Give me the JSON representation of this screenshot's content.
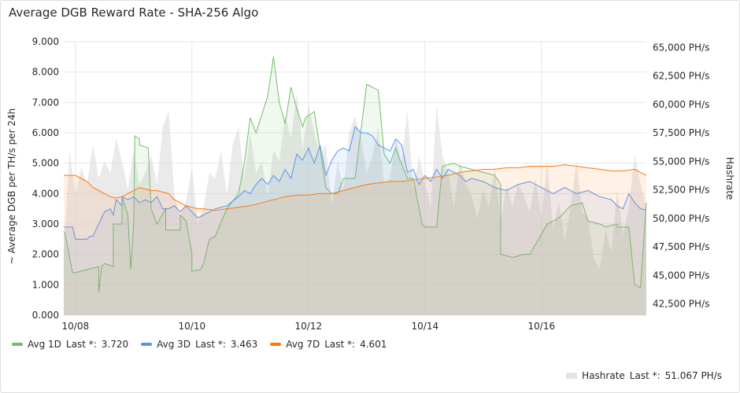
{
  "panel": {
    "title": "Average DGB Reward Rate - SHA-256 Algo"
  },
  "chart_data": {
    "type": "line",
    "title": "Average DGB Reward Rate - SHA-256 Algo",
    "ylabel": "~ Average DGB per TH/s per 24h",
    "y2label": "Hashrate",
    "ylim": [
      0,
      9
    ],
    "y2lim": [
      41500,
      65500
    ],
    "xlim": [
      0,
      10
    ],
    "yticks": [
      "0.000",
      "1.000",
      "2.000",
      "3.000",
      "4.000",
      "5.000",
      "6.000",
      "7.000",
      "8.000",
      "9.000"
    ],
    "yticks_values": [
      0,
      1,
      2,
      3,
      4,
      5,
      6,
      7,
      8,
      9
    ],
    "y2ticks": [
      "42,500 PH/s",
      "45,000 PH/s",
      "47,500 PH/s",
      "50,000 PH/s",
      "52,500 PH/s",
      "55,000 PH/s",
      "57,500 PH/s",
      "60,000 PH/s",
      "62,500 PH/s",
      "65,000 PH/s"
    ],
    "y2ticks_values": [
      42500,
      45000,
      47500,
      50000,
      52500,
      55000,
      57500,
      60000,
      62500,
      65000
    ],
    "xticks": [
      "10/08",
      "10/10",
      "10/12",
      "10/14",
      "10/16"
    ],
    "xticks_values": [
      0.2,
      2.2,
      4.2,
      6.2,
      8.2
    ],
    "grid": true,
    "legend_position": "bottom",
    "series": [
      {
        "name": "Avg 1D",
        "last_label": "Last *:",
        "last_value": "3.720",
        "color": "#73bf69",
        "axis": "left",
        "x": [
          0,
          0.02,
          0.15,
          0.2,
          0.4,
          0.6,
          0.6,
          0.65,
          0.7,
          0.85,
          0.85,
          1.0,
          1.0,
          1.1,
          1.15,
          1.2,
          1.22,
          1.3,
          1.3,
          1.45,
          1.5,
          1.6,
          1.75,
          1.75,
          2.0,
          2.0,
          2.1,
          2.2,
          2.2,
          2.35,
          2.4,
          2.5,
          2.6,
          2.8,
          3.0,
          3.1,
          3.2,
          3.3,
          3.5,
          3.6,
          3.7,
          3.8,
          3.9,
          4.0,
          4.1,
          4.15,
          4.3,
          4.5,
          4.6,
          4.7,
          4.8,
          5.0,
          5.2,
          5.4,
          5.5,
          5.6,
          5.7,
          5.75,
          5.9,
          6.0,
          6.15,
          6.2,
          6.4,
          6.5,
          6.7,
          6.8,
          7.0,
          7.2,
          7.4,
          7.5,
          7.5,
          7.7,
          7.9,
          8.0,
          8.3,
          8.5,
          8.7,
          8.9,
          9.0,
          9.2,
          9.3,
          9.5,
          9.5,
          9.7,
          9.8,
          9.9,
          10.0
        ],
        "y": [
          2.75,
          2.7,
          1.4,
          1.4,
          1.5,
          1.6,
          0.75,
          1.6,
          1.7,
          1.6,
          3.0,
          3.0,
          3.9,
          3.3,
          1.5,
          3.0,
          5.9,
          5.8,
          5.6,
          5.5,
          3.5,
          3.0,
          3.5,
          2.8,
          2.8,
          3.3,
          3.1,
          2.0,
          1.45,
          1.5,
          1.7,
          2.5,
          2.6,
          3.5,
          4.0,
          5.0,
          6.5,
          6.0,
          7.2,
          8.5,
          7.0,
          6.3,
          7.5,
          6.8,
          6.2,
          6.5,
          6.7,
          4.2,
          4.0,
          4.0,
          4.5,
          4.5,
          7.6,
          7.4,
          5.3,
          5.0,
          5.5,
          5.2,
          4.5,
          4.5,
          3.0,
          2.9,
          2.9,
          4.9,
          5.0,
          4.9,
          4.8,
          4.7,
          4.6,
          4.3,
          2.0,
          1.9,
          2.0,
          2.0,
          3.0,
          3.2,
          3.6,
          3.7,
          3.1,
          3.0,
          2.9,
          3.0,
          2.9,
          2.9,
          1.0,
          0.9,
          3.7
        ]
      },
      {
        "name": "Avg 3D",
        "last_label": "Last *:",
        "last_value": "3.463",
        "color": "#5794f2",
        "axis": "left",
        "x": [
          0,
          0.15,
          0.2,
          0.3,
          0.4,
          0.45,
          0.5,
          0.6,
          0.7,
          0.8,
          0.85,
          0.9,
          1.0,
          1.0,
          1.1,
          1.2,
          1.3,
          1.4,
          1.5,
          1.6,
          1.7,
          1.8,
          1.9,
          2.0,
          2.1,
          2.2,
          2.3,
          2.4,
          2.6,
          2.8,
          3.0,
          3.1,
          3.2,
          3.3,
          3.4,
          3.5,
          3.6,
          3.7,
          3.8,
          3.9,
          4.0,
          4.1,
          4.2,
          4.3,
          4.4,
          4.5,
          4.6,
          4.7,
          4.8,
          4.9,
          5.0,
          5.1,
          5.2,
          5.3,
          5.4,
          5.5,
          5.6,
          5.7,
          5.8,
          5.9,
          6.0,
          6.1,
          6.2,
          6.3,
          6.4,
          6.5,
          6.6,
          6.7,
          6.8,
          6.9,
          7.0,
          7.2,
          7.4,
          7.6,
          7.8,
          8.0,
          8.2,
          8.4,
          8.6,
          8.8,
          9.0,
          9.2,
          9.4,
          9.5,
          9.6,
          9.7,
          9.8,
          9.9,
          10.0
        ],
        "y": [
          2.9,
          2.9,
          2.5,
          2.5,
          2.5,
          2.6,
          2.6,
          3.0,
          3.4,
          3.5,
          3.3,
          3.8,
          3.6,
          3.9,
          3.8,
          3.9,
          3.7,
          3.8,
          3.7,
          3.9,
          3.5,
          3.5,
          3.6,
          3.4,
          3.6,
          3.4,
          3.2,
          3.3,
          3.5,
          3.6,
          3.9,
          4.1,
          4.0,
          4.3,
          4.5,
          4.3,
          4.6,
          4.4,
          4.8,
          4.5,
          5.3,
          5.1,
          5.5,
          5.0,
          5.6,
          4.6,
          5.1,
          5.4,
          5.5,
          5.4,
          6.2,
          6.0,
          6.0,
          5.9,
          5.6,
          5.5,
          5.4,
          5.8,
          5.6,
          4.7,
          4.8,
          4.3,
          4.6,
          4.4,
          4.8,
          4.5,
          4.8,
          4.7,
          4.6,
          4.4,
          4.5,
          4.4,
          4.2,
          4.1,
          4.3,
          4.4,
          4.2,
          4.0,
          4.2,
          4.0,
          4.1,
          3.9,
          3.8,
          3.6,
          3.5,
          4.0,
          3.7,
          3.5,
          3.46
        ]
      },
      {
        "name": "Avg 7D",
        "last_label": "Last *:",
        "last_value": "4.601",
        "color": "#ff780a",
        "axis": "left",
        "x": [
          0,
          0.2,
          0.3,
          0.4,
          0.5,
          0.6,
          0.7,
          0.8,
          0.9,
          1.0,
          1.1,
          1.2,
          1.3,
          1.4,
          1.5,
          1.6,
          1.7,
          1.8,
          1.9,
          2.0,
          2.1,
          2.2,
          2.3,
          2.4,
          2.6,
          2.8,
          3.0,
          3.2,
          3.4,
          3.6,
          3.8,
          4.0,
          4.2,
          4.4,
          4.6,
          4.8,
          5.0,
          5.2,
          5.4,
          5.6,
          5.8,
          6.0,
          6.2,
          6.4,
          6.6,
          6.8,
          7.0,
          7.2,
          7.4,
          7.6,
          7.8,
          8.0,
          8.2,
          8.4,
          8.6,
          8.8,
          9.0,
          9.2,
          9.4,
          9.6,
          9.8,
          9.9,
          10.0
        ],
        "y": [
          4.6,
          4.6,
          4.5,
          4.4,
          4.2,
          4.1,
          4.0,
          3.9,
          3.85,
          3.9,
          4.0,
          4.1,
          4.2,
          4.15,
          4.1,
          4.1,
          4.05,
          4.0,
          3.8,
          3.7,
          3.6,
          3.55,
          3.5,
          3.5,
          3.45,
          3.5,
          3.55,
          3.6,
          3.7,
          3.8,
          3.9,
          3.95,
          3.95,
          4.0,
          4.0,
          4.1,
          4.2,
          4.3,
          4.35,
          4.4,
          4.4,
          4.45,
          4.5,
          4.55,
          4.6,
          4.7,
          4.75,
          4.8,
          4.8,
          4.85,
          4.85,
          4.9,
          4.9,
          4.9,
          4.95,
          4.9,
          4.85,
          4.8,
          4.75,
          4.75,
          4.8,
          4.7,
          4.6
        ]
      },
      {
        "name": "Hashrate",
        "last_label": "Last *:",
        "last_value": "51.067 PH/s",
        "color": "#d9d9d9",
        "axis": "right",
        "x": [
          0,
          0.1,
          0.2,
          0.3,
          0.4,
          0.5,
          0.6,
          0.7,
          0.8,
          0.9,
          1.0,
          1.1,
          1.2,
          1.3,
          1.4,
          1.5,
          1.6,
          1.7,
          1.8,
          1.9,
          2.0,
          2.1,
          2.2,
          2.3,
          2.4,
          2.5,
          2.6,
          2.7,
          2.8,
          2.9,
          3.0,
          3.1,
          3.2,
          3.3,
          3.4,
          3.5,
          3.6,
          3.7,
          3.8,
          3.9,
          4.0,
          4.1,
          4.2,
          4.3,
          4.4,
          4.5,
          4.6,
          4.7,
          4.8,
          4.9,
          5.0,
          5.1,
          5.2,
          5.3,
          5.4,
          5.5,
          5.6,
          5.7,
          5.8,
          5.9,
          6.0,
          6.1,
          6.2,
          6.3,
          6.4,
          6.5,
          6.6,
          6.7,
          6.8,
          6.9,
          7.0,
          7.1,
          7.2,
          7.3,
          7.4,
          7.5,
          7.6,
          7.7,
          7.8,
          7.9,
          8.0,
          8.1,
          8.2,
          8.3,
          8.4,
          8.5,
          8.6,
          8.7,
          8.8,
          8.9,
          9.0,
          9.1,
          9.2,
          9.3,
          9.4,
          9.5,
          9.6,
          9.7,
          9.8,
          9.9,
          10.0
        ],
        "y": [
          47000,
          56000,
          52000,
          54500,
          53000,
          56500,
          53500,
          55000,
          54000,
          57000,
          55000,
          52500,
          56000,
          53000,
          54000,
          55500,
          53000,
          58000,
          59500,
          52000,
          50000,
          51500,
          54500,
          49500,
          51000,
          54000,
          53500,
          56000,
          52000,
          56500,
          58000,
          53500,
          57500,
          54000,
          55000,
          52000,
          56000,
          55000,
          59000,
          57000,
          61000,
          56000,
          60000,
          57500,
          55500,
          56500,
          51000,
          55000,
          52500,
          57500,
          59000,
          57000,
          54000,
          55500,
          58000,
          53000,
          53500,
          57000,
          55000,
          59500,
          52500,
          55500,
          53000,
          51000,
          60000,
          55500,
          54000,
          51000,
          55000,
          53000,
          52000,
          50000,
          52500,
          51000,
          54500,
          49500,
          53000,
          51000,
          53000,
          52000,
          50500,
          53500,
          50000,
          55000,
          49000,
          51500,
          48000,
          51000,
          55000,
          50500,
          50000,
          46500,
          45500,
          49000,
          47000,
          52500,
          48500,
          51000,
          55500,
          53000,
          51067
        ]
      }
    ]
  }
}
